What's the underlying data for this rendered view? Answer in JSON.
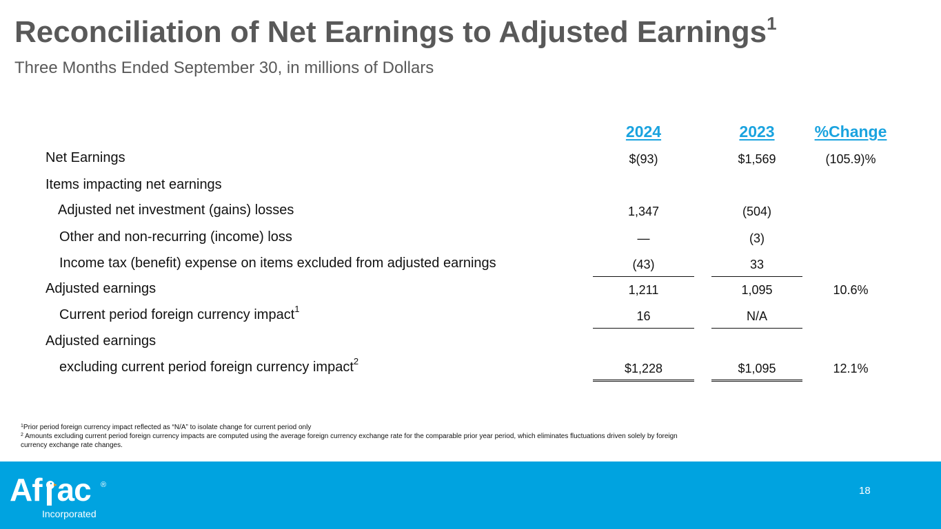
{
  "title": "Reconciliation of Net Earnings to Adjusted Earnings",
  "title_sup": "1",
  "subtitle": "Three Months Ended September 30, in millions of Dollars",
  "headers": {
    "col2024": "2024",
    "col2023": "2023",
    "colchange": "%Change"
  },
  "rows": [
    {
      "label": "Net Earnings",
      "v2024": "$(93)",
      "v2023": "$1,569",
      "change": "(105.9)%"
    },
    {
      "label": "Items impacting net earnings",
      "v2024": "",
      "v2023": "",
      "change": ""
    },
    {
      "label": "Adjusted net investment (gains) losses",
      "v2024": "1,347",
      "v2023": "(504)",
      "change": ""
    },
    {
      "label": "Other and non-recurring (income) loss",
      "v2024": "—",
      "v2023": "(3)",
      "change": ""
    },
    {
      "label": "Income tax (benefit) expense on items excluded from adjusted earnings",
      "v2024": "(43)",
      "v2023": "33",
      "change": ""
    },
    {
      "label": "Adjusted earnings",
      "v2024": "1,211",
      "v2023": "1,095",
      "change": "10.6%"
    },
    {
      "label": "Current period foreign currency impact",
      "sup": "1",
      "v2024": "16",
      "v2023": "N/A",
      "change": ""
    },
    {
      "label": "Adjusted earnings",
      "v2024": "",
      "v2023": "",
      "change": ""
    },
    {
      "label": "excluding current period foreign currency impact",
      "sup": "2",
      "v2024": "$1,228",
      "v2023": "$1,095",
      "change": "12.1%"
    }
  ],
  "footnotes": {
    "fn1_sup": "1",
    "fn1": "Prior period foreign currency impact reflected as “N/A” to isolate change for current period only",
    "fn2_sup": "2",
    "fn2": " Amounts excluding current period foreign currency impacts are computed using the average foreign currency exchange rate for the comparable prior year period, which eliminates fluctuations driven solely by foreign currency exchange rate changes."
  },
  "footer": {
    "logo_text_left": "Af",
    "logo_text_right": "ac",
    "logo_reg": "®",
    "logo_sub": "Incorporated",
    "page_number": "18"
  },
  "colors": {
    "accent": "#1aa3df",
    "footer_bg": "#00a3e0",
    "title": "#595959"
  }
}
